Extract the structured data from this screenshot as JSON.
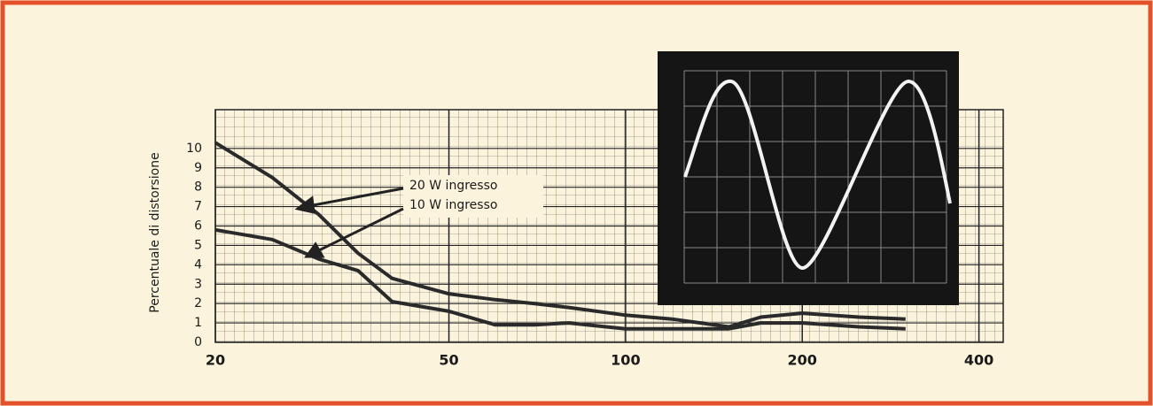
{
  "chart_data": {
    "type": "line",
    "y_label": "Percentuale di distorsione",
    "log_x": true,
    "grid": true,
    "x": [
      20,
      25,
      30,
      35,
      40,
      50,
      60,
      70,
      80,
      100,
      120,
      150,
      170,
      200,
      250,
      300
    ],
    "series": [
      {
        "name": "20 W ingresso",
        "color": "#2a2a2a",
        "values": [
          10.3,
          8.5,
          6.6,
          4.6,
          3.3,
          2.5,
          2.2,
          2.0,
          1.8,
          1.4,
          1.2,
          0.8,
          1.3,
          1.5,
          1.3,
          1.2
        ]
      },
      {
        "name": "10 W ingresso",
        "color": "#2a2a2a",
        "values": [
          5.8,
          5.3,
          4.3,
          3.7,
          2.1,
          1.6,
          0.9,
          0.9,
          1.0,
          0.7,
          0.7,
          0.7,
          1.0,
          1.0,
          0.8,
          0.7
        ]
      }
    ],
    "xlim": [
      20,
      440
    ],
    "xticks": [
      20,
      50,
      100,
      200,
      400
    ],
    "ylim": [
      0,
      12
    ],
    "yticks": [
      0,
      1,
      2,
      3,
      4,
      5,
      6,
      7,
      8,
      9,
      10
    ]
  }
}
